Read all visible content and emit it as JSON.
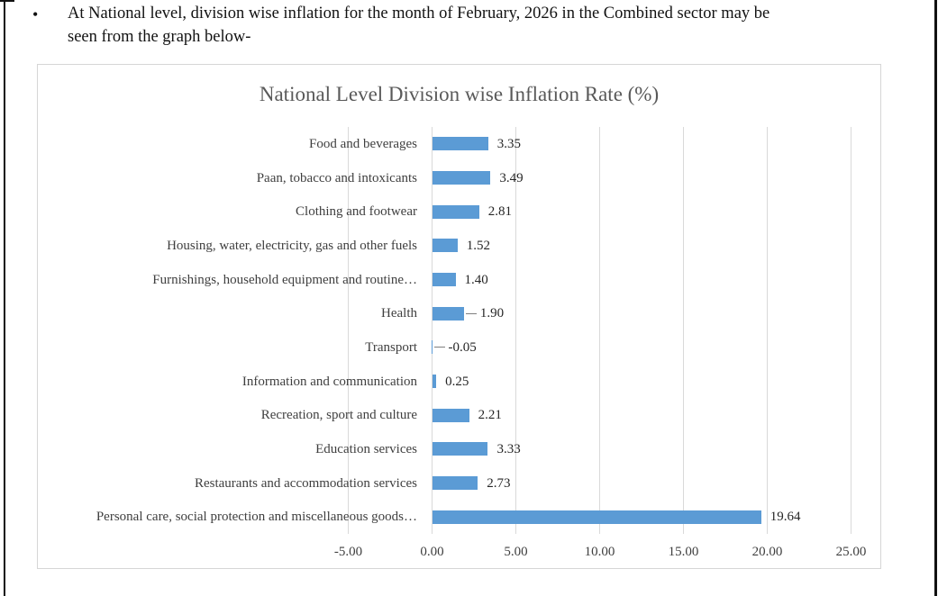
{
  "page": {
    "bullet": "•",
    "paragraph": "At National level, division wise inflation for the month of February, 2026 in the Combined sector may be seen from the graph below-",
    "paragraph_lines": [
      "At National level, division wise inflation for the month of February, 2026 in the Combined sector may be",
      "seen from the graph below-"
    ]
  },
  "chart_data": {
    "type": "bar",
    "orientation": "horizontal",
    "title": "National Level Division wise Inflation Rate (%)",
    "categories": [
      "Food and beverages",
      "Paan, tobacco and intoxicants",
      "Clothing and footwear",
      "Housing, water, electricity, gas and other fuels",
      "Furnishings, household equipment and routine…",
      "Health",
      "Transport",
      "Information and communication",
      "Recreation, sport and culture",
      "Education services",
      "Restaurants and accommodation services",
      "Personal care, social protection and miscellaneous goods…"
    ],
    "values": [
      3.35,
      3.49,
      2.81,
      1.52,
      1.4,
      1.9,
      -0.05,
      0.25,
      2.21,
      3.33,
      2.73,
      19.64
    ],
    "value_labels": [
      "3.35",
      "3.49",
      "2.81",
      "1.52",
      "1.40",
      "1.90",
      "-0.05",
      "0.25",
      "2.21",
      "3.33",
      "2.73",
      "19.64"
    ],
    "leader_line_rows": [
      5,
      6
    ],
    "x_tick_values": [
      -5,
      0,
      5,
      10,
      15,
      20,
      25
    ],
    "x_tick_labels": [
      "-5.00",
      "0.00",
      "5.00",
      "10.00",
      "15.00",
      "20.00",
      "25.00"
    ],
    "xlim": [
      -5,
      25
    ],
    "grid": true,
    "legend": false,
    "bar_color": "#5b9bd5",
    "gridline_color": "#d9d9d9",
    "title_color": "#595959"
  }
}
